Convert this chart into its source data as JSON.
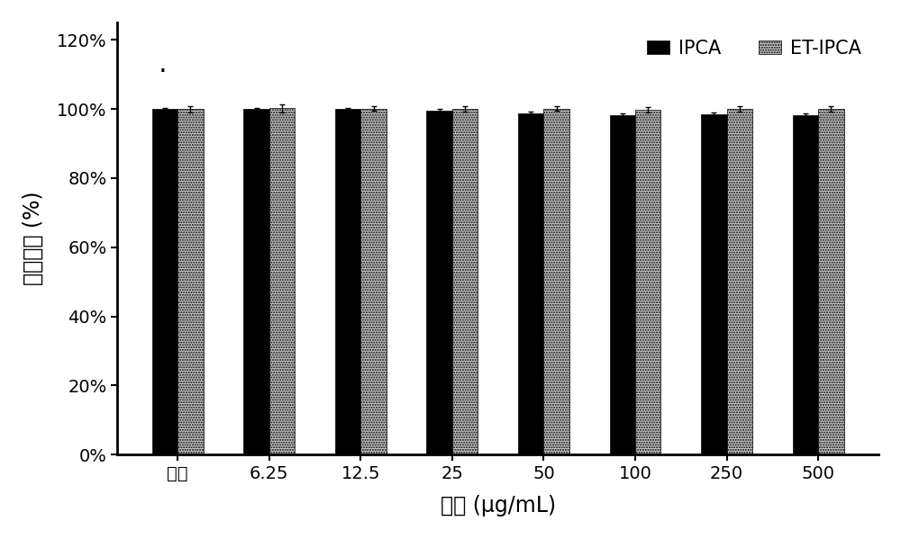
{
  "categories": [
    "参比",
    "6.25",
    "12.5",
    "25",
    "50",
    "100",
    "250",
    "500"
  ],
  "ipca_values": [
    100.0,
    100.0,
    100.0,
    99.5,
    98.8,
    98.2,
    98.5,
    98.2
  ],
  "et_ipca_values": [
    100.0,
    100.2,
    100.1,
    100.0,
    100.1,
    99.8,
    100.0,
    100.1
  ],
  "ipca_errors": [
    0.4,
    0.4,
    0.4,
    0.4,
    0.5,
    0.5,
    0.5,
    0.5
  ],
  "et_ipca_errors": [
    0.9,
    1.1,
    0.7,
    0.7,
    0.7,
    0.7,
    0.7,
    0.8
  ],
  "ipca_color": "#000000",
  "et_ipca_color": "#c8c8c8",
  "ylabel": "细胞活性 (%)",
  "xlabel": "浓度 (μg/mL)",
  "ylim": [
    0,
    125
  ],
  "yticks": [
    0,
    20,
    40,
    60,
    80,
    100,
    120
  ],
  "ytick_labels": [
    "0%",
    "20%",
    "40%",
    "60%",
    "80%",
    "100%",
    "120%"
  ],
  "legend_ipca": "IPCA",
  "legend_et_ipca": "ET-IPCA",
  "bar_width": 0.28,
  "background_color": "#ffffff",
  "label_fontsize": 17,
  "tick_fontsize": 14,
  "legend_fontsize": 15
}
